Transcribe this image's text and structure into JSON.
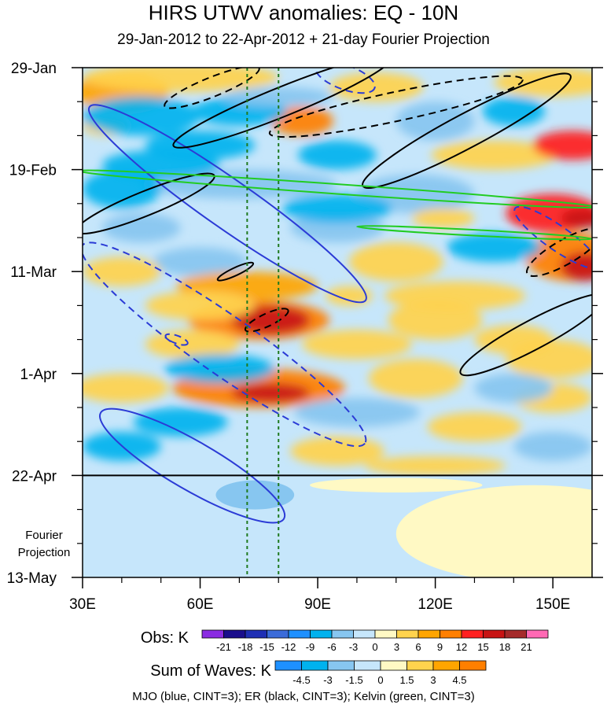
{
  "title": "HIRS UTWV anomalies: EQ - 10N",
  "subtitle": "29-Jan-2012 to 22-Apr-2012 + 21-day Fourier Projection",
  "projection_label": "Fourier Projection",
  "obs_colorbar": {
    "label": "Obs: K",
    "ticks": [
      "-21",
      "-18",
      "-15",
      "-12",
      "-9",
      "-6",
      "-3",
      "0",
      "3",
      "6",
      "9",
      "12",
      "15",
      "18",
      "21"
    ],
    "colors": [
      "#8a2be2",
      "#1a0e8c",
      "#1f2fb4",
      "#3b6bd9",
      "#1e90ff",
      "#00b2ee",
      "#87c6f0",
      "#c6e6fb",
      "#fff9c4",
      "#ffd34d",
      "#ffa500",
      "#ff7f00",
      "#ff2020",
      "#c81414",
      "#a52a2a",
      "#ff69b4"
    ]
  },
  "waves_colorbar": {
    "label": "Sum of Waves: K",
    "ticks": [
      "-4.5",
      "-3",
      "-1.5",
      "0",
      "1.5",
      "3",
      "4.5"
    ],
    "colors": [
      "#1e90ff",
      "#00b2ee",
      "#87c6f0",
      "#c6e6fb",
      "#fff9c4",
      "#ffd34d",
      "#ffa500",
      "#ff7f00"
    ]
  },
  "footer": "MJO (blue, CINT=3); ER (black, CINT=3); Kelvin (green, CINT=3)",
  "chart_data": {
    "type": "heatmap",
    "x_axis": {
      "ticks": [
        30,
        60,
        90,
        120,
        150
      ],
      "tick_labels": [
        "30E",
        "60E",
        "90E",
        "120E",
        "150E"
      ],
      "range": [
        30,
        160
      ],
      "unit": "longitude"
    },
    "y_axis": {
      "tick_labels": [
        "29-Jan",
        "19-Feb",
        "11-Mar",
        "1-Apr",
        "22-Apr",
        "13-May"
      ],
      "tick_days": [
        0,
        21,
        42,
        63,
        84,
        105
      ],
      "range_days": [
        0,
        105
      ],
      "direction": "down"
    },
    "reference_lines": {
      "end_of_obs_day": 84,
      "dotted_longitudes": [
        72,
        80
      ]
    },
    "contours": [
      {
        "wave": "MJO",
        "color": "#2b3bd6",
        "dashed": true,
        "center": [
          97,
          2
        ],
        "rx": 8,
        "ry": 2.5,
        "rot": 20
      },
      {
        "wave": "MJO",
        "color": "#2b3bd6",
        "dashed": false,
        "center": [
          67,
          28
        ],
        "rx": 43,
        "ry": 5,
        "rot": 35
      },
      {
        "wave": "MJO",
        "color": "#2b3bd6",
        "dashed": true,
        "center": [
          66,
          57
        ],
        "rx": 44,
        "ry": 6,
        "rot": 35
      },
      {
        "wave": "MJO",
        "color": "#2b3bd6",
        "dashed": true,
        "center": [
          54,
          56
        ],
        "rx": 3,
        "ry": 0.8,
        "rot": 20
      },
      {
        "wave": "MJO",
        "color": "#2b3bd6",
        "dashed": false,
        "center": [
          58,
          82
        ],
        "rx": 27,
        "ry": 5,
        "rot": 30
      },
      {
        "wave": "MJO",
        "color": "#2b3bd6",
        "dashed": true,
        "center": [
          151,
          35
        ],
        "rx": 13,
        "ry": 2.5,
        "rot": 35
      },
      {
        "wave": "ER",
        "color": "#000000",
        "dashed": true,
        "center": [
          63,
          4
        ],
        "rx": 13,
        "ry": 2,
        "rot": -22
      },
      {
        "wave": "ER",
        "color": "#000000",
        "dashed": false,
        "center": [
          81,
          7
        ],
        "rx": 30,
        "ry": 3,
        "rot": -22
      },
      {
        "wave": "ER",
        "color": "#000000",
        "dashed": true,
        "center": [
          110,
          8
        ],
        "rx": 33,
        "ry": 3,
        "rot": -12
      },
      {
        "wave": "ER",
        "color": "#000000",
        "dashed": false,
        "center": [
          128,
          13
        ],
        "rx": 30,
        "ry": 3.5,
        "rot": -28
      },
      {
        "wave": "ER",
        "color": "#000000",
        "dashed": false,
        "center": [
          46,
          28
        ],
        "rx": 19,
        "ry": 2.5,
        "rot": -22
      },
      {
        "wave": "ER",
        "color": "#000000",
        "dashed": false,
        "center": [
          69,
          42
        ],
        "rx": 5,
        "ry": 0.8,
        "rot": -25
      },
      {
        "wave": "ER",
        "color": "#000000",
        "dashed": true,
        "center": [
          77,
          52
        ],
        "rx": 6,
        "ry": 1.3,
        "rot": -25
      },
      {
        "wave": "ER",
        "color": "#000000",
        "dashed": true,
        "center": [
          153,
          38
        ],
        "rx": 11,
        "ry": 2.5,
        "rot": -30
      },
      {
        "wave": "ER",
        "color": "#000000",
        "dashed": false,
        "center": [
          145,
          55
        ],
        "rx": 21,
        "ry": 3,
        "rot": -28
      },
      {
        "wave": "Kelvin",
        "color": "#22cc22",
        "dashed": false,
        "center": [
          95,
          25
        ],
        "rx": 66,
        "ry": 1,
        "rot": 4
      },
      {
        "wave": "Kelvin",
        "color": "#22cc22",
        "dashed": false,
        "center": [
          130,
          34
        ],
        "rx": 30,
        "ry": 0.6,
        "rot": 3
      }
    ],
    "heatmap_note": "Observed UTWV anomalies (K) shaded; strongest positive anomalies near 75E around mid-March and 150E late Feb/early March."
  }
}
